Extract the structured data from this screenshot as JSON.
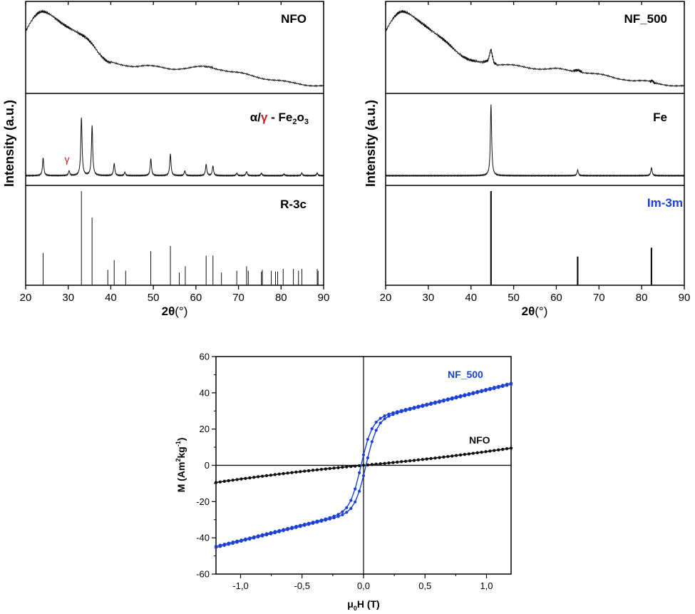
{
  "chart_data": [
    {
      "type": "line",
      "id": "xrd-left",
      "xlabel_main": "2θ",
      "xlabel_unit": "(°)",
      "ylabel": "Intensity (a.u.)",
      "xlim": [
        20,
        90
      ],
      "xticks": [
        "20",
        "30",
        "40",
        "50",
        "60",
        "70",
        "80",
        "90"
      ],
      "panels": [
        {
          "label": "NFO",
          "kind": "amorphous",
          "series": [
            {
              "x": [
                20,
                21,
                22,
                23,
                24,
                25,
                26,
                27,
                28,
                29,
                30,
                31,
                32,
                33,
                34,
                35,
                36,
                37,
                38,
                39,
                40,
                42,
                44,
                46,
                48,
                50,
                52,
                54,
                56,
                58,
                60,
                62,
                63,
                64,
                66,
                68,
                70,
                72,
                74,
                76,
                78,
                80,
                82,
                84,
                86,
                88,
                90
              ],
              "y": [
                0.7,
                0.8,
                0.88,
                0.93,
                0.95,
                0.93,
                0.9,
                0.86,
                0.82,
                0.78,
                0.75,
                0.72,
                0.69,
                0.66,
                0.63,
                0.58,
                0.52,
                0.44,
                0.38,
                0.33,
                0.31,
                0.29,
                0.28,
                0.27,
                0.27,
                0.26,
                0.25,
                0.24,
                0.24,
                0.24,
                0.25,
                0.26,
                0.26,
                0.25,
                0.23,
                0.2,
                0.18,
                0.16,
                0.14,
                0.12,
                0.1,
                0.08,
                0.06,
                0.05,
                0.04,
                0.03,
                0.02
              ]
            }
          ]
        },
        {
          "label_prefix": "α/",
          "label_gamma": "γ",
          "label_mid": " - Fe",
          "label_sub1": "2",
          "label_o": "o",
          "label_sub2": "3",
          "annotation": "γ",
          "kind": "peaks",
          "baseline": 0.05,
          "peaks": [
            {
              "x": 24.1,
              "h": 0.22
            },
            {
              "x": 30.2,
              "h": 0.06
            },
            {
              "x": 33.1,
              "h": 0.72
            },
            {
              "x": 35.6,
              "h": 0.62
            },
            {
              "x": 40.8,
              "h": 0.15
            },
            {
              "x": 43.3,
              "h": 0.04
            },
            {
              "x": 49.4,
              "h": 0.21
            },
            {
              "x": 54.0,
              "h": 0.27
            },
            {
              "x": 57.4,
              "h": 0.06
            },
            {
              "x": 62.4,
              "h": 0.14
            },
            {
              "x": 64.0,
              "h": 0.12
            },
            {
              "x": 69.6,
              "h": 0.03
            },
            {
              "x": 71.9,
              "h": 0.05
            },
            {
              "x": 75.4,
              "h": 0.03
            },
            {
              "x": 80.7,
              "h": 0.02
            },
            {
              "x": 84.9,
              "h": 0.03
            },
            {
              "x": 88.5,
              "h": 0.03
            }
          ]
        },
        {
          "label": "R-3c",
          "kind": "sticks",
          "sticks": [
            {
              "x": 24.1,
              "h": 0.3
            },
            {
              "x": 33.1,
              "h": 1.0
            },
            {
              "x": 35.6,
              "h": 0.7
            },
            {
              "x": 39.3,
              "h": 0.11
            },
            {
              "x": 40.8,
              "h": 0.22
            },
            {
              "x": 43.5,
              "h": 0.1
            },
            {
              "x": 49.4,
              "h": 0.32
            },
            {
              "x": 54.0,
              "h": 0.38
            },
            {
              "x": 56.1,
              "h": 0.08
            },
            {
              "x": 57.5,
              "h": 0.15
            },
            {
              "x": 62.4,
              "h": 0.27
            },
            {
              "x": 64.0,
              "h": 0.27
            },
            {
              "x": 66.0,
              "h": 0.08
            },
            {
              "x": 69.6,
              "h": 0.1
            },
            {
              "x": 71.9,
              "h": 0.15
            },
            {
              "x": 72.3,
              "h": 0.1
            },
            {
              "x": 75.4,
              "h": 0.09
            },
            {
              "x": 75.6,
              "h": 0.11
            },
            {
              "x": 77.7,
              "h": 0.1
            },
            {
              "x": 78.7,
              "h": 0.09
            },
            {
              "x": 79.2,
              "h": 0.09
            },
            {
              "x": 80.5,
              "h": 0.12
            },
            {
              "x": 82.9,
              "h": 0.12
            },
            {
              "x": 84.1,
              "h": 0.1
            },
            {
              "x": 84.9,
              "h": 0.12
            },
            {
              "x": 88.5,
              "h": 0.12
            },
            {
              "x": 88.7,
              "h": 0.1
            }
          ]
        }
      ]
    },
    {
      "type": "line",
      "id": "xrd-right",
      "xlabel_main": "2θ",
      "xlabel_unit": "(°)",
      "ylabel": "Intensity (a.u.)",
      "xlim": [
        20,
        90
      ],
      "xticks": [
        "20",
        "30",
        "40",
        "50",
        "60",
        "70",
        "80",
        "90"
      ],
      "panels": [
        {
          "label": "NF_500",
          "kind": "amorphous",
          "series": [
            {
              "x": [
                20,
                21,
                22,
                23,
                24,
                25,
                26,
                27,
                28,
                29,
                30,
                31,
                32,
                33,
                34,
                35,
                36,
                37,
                38,
                39,
                40,
                41,
                42,
                43,
                44,
                44.4,
                44.7,
                45.0,
                45.4,
                46,
                48,
                50,
                52,
                54,
                56,
                58,
                60,
                62,
                64,
                65,
                66,
                68,
                70,
                72,
                74,
                76,
                78,
                80,
                82,
                82.4,
                83,
                84,
                86,
                88,
                90
              ],
              "y": [
                0.7,
                0.8,
                0.88,
                0.93,
                0.95,
                0.93,
                0.9,
                0.86,
                0.82,
                0.78,
                0.74,
                0.7,
                0.66,
                0.62,
                0.58,
                0.53,
                0.48,
                0.43,
                0.39,
                0.36,
                0.34,
                0.33,
                0.32,
                0.32,
                0.34,
                0.42,
                0.48,
                0.4,
                0.31,
                0.29,
                0.28,
                0.27,
                0.26,
                0.25,
                0.24,
                0.23,
                0.23,
                0.22,
                0.21,
                0.22,
                0.2,
                0.18,
                0.16,
                0.14,
                0.12,
                0.11,
                0.09,
                0.08,
                0.07,
                0.09,
                0.06,
                0.05,
                0.04,
                0.03,
                0.02
              ]
            }
          ]
        },
        {
          "label": "Fe",
          "kind": "peaks",
          "baseline": 0.05,
          "peaks": [
            {
              "x": 44.7,
              "h": 0.88
            },
            {
              "x": 65.0,
              "h": 0.07
            },
            {
              "x": 82.3,
              "h": 0.1
            }
          ]
        },
        {
          "label": "Im-3m",
          "kind": "sticks",
          "label_color": "#1a3fd6",
          "sticks": [
            {
              "x": 44.7,
              "h": 1.0
            },
            {
              "x": 65.0,
              "h": 0.26
            },
            {
              "x": 82.3,
              "h": 0.36
            }
          ]
        }
      ]
    },
    {
      "type": "scatter",
      "id": "hysteresis",
      "xlabel_mu": "μ",
      "xlabel_sub": "0",
      "xlabel_rest": "H (T)",
      "ylabel_pre": "M (Am",
      "ylabel_sup1": "2",
      "ylabel_mid": "kg",
      "ylabel_sup2": "-1",
      "ylabel_post": ")",
      "xlim": [
        -1.2,
        1.2
      ],
      "ylim": [
        -60,
        60
      ],
      "xticks": [
        "-1,0",
        "-0,5",
        "0,0",
        "0,5",
        "1,0"
      ],
      "yticks": [
        "-60",
        "-40",
        "-20",
        "0",
        "20",
        "40",
        "60"
      ],
      "series": [
        {
          "name": "NF_500",
          "color": "#1a3fd6",
          "Ms": 45.0,
          "Hc": 0.02
        },
        {
          "name": "NFO",
          "color": "#111111",
          "Ms": 9.5,
          "Hc": 0.0
        }
      ]
    }
  ]
}
